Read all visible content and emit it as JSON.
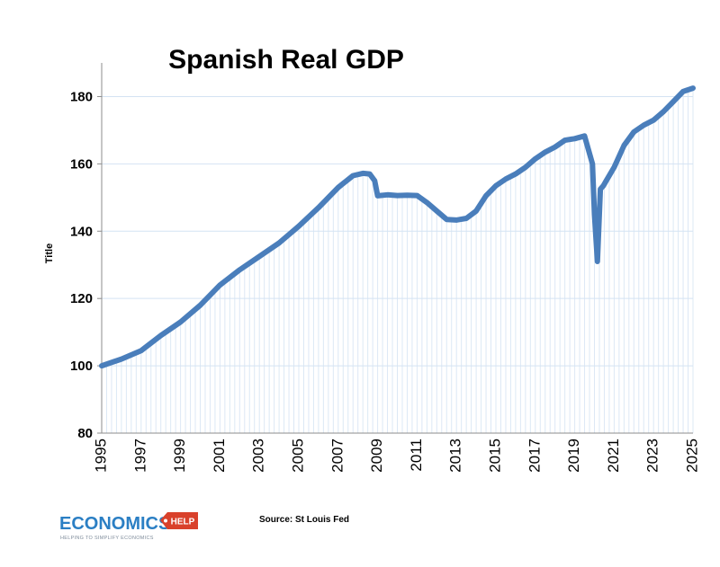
{
  "chart_data": {
    "type": "line",
    "title": "Spanish Real GDP",
    "xlabel": "",
    "ylabel": "Title",
    "xlim": [
      1995,
      2025
    ],
    "ylim": [
      80,
      190
    ],
    "yticks": [
      80,
      100,
      120,
      140,
      160,
      180
    ],
    "xticks": [
      "1995",
      "1997",
      "1999",
      "2001",
      "2003",
      "2005",
      "2007",
      "2009",
      "2011",
      "2013",
      "2015",
      "2017",
      "2019",
      "2021",
      "2023",
      "2025"
    ],
    "grid": "horizontal",
    "series": [
      {
        "name": "Spanish Real GDP",
        "color": "#4a7ebb",
        "x": [
          1995,
          1996,
          1997,
          1998,
          1999,
          2000,
          2001,
          2002,
          2003,
          2004,
          2005,
          2006,
          2007,
          2007.75,
          2008.25,
          2008.6,
          2008.85,
          2009.0,
          2009.5,
          2010,
          2010.5,
          2011,
          2011.5,
          2012,
          2012.5,
          2013,
          2013.5,
          2014,
          2014.5,
          2015,
          2015.5,
          2016,
          2016.5,
          2017,
          2017.5,
          2018,
          2018.5,
          2019,
          2019.5,
          2019.9,
          2020.0,
          2020.15,
          2020.3,
          2020.45,
          2020.6,
          2021,
          2021.5,
          2022,
          2022.5,
          2023,
          2023.5,
          2024,
          2024.5,
          2025
        ],
        "values": [
          100,
          102,
          104.5,
          109,
          113,
          118,
          124,
          128.5,
          132.5,
          136.5,
          141.5,
          147,
          153,
          156.5,
          157.2,
          157.0,
          155.0,
          150.5,
          150.8,
          150.6,
          150.7,
          150.6,
          148.5,
          146,
          143.5,
          143.3,
          143.8,
          146,
          150.5,
          153.5,
          155.5,
          157,
          159,
          161.5,
          163.5,
          165,
          167,
          167.5,
          168.3,
          160,
          145,
          131,
          152.5,
          153.5,
          155,
          159,
          165.5,
          169.5,
          171.5,
          173,
          175.5,
          178.5,
          181.5,
          182.5
        ]
      }
    ]
  },
  "source_text": "Source: St Louis Fed",
  "logo": {
    "main_text": "ECONOMICS",
    "tag_text": "HELP",
    "tagline": "HELPING TO SIMPLIFY ECONOMICS",
    "main_color": "#2b7fc4",
    "tag_color": "#d9412b"
  }
}
